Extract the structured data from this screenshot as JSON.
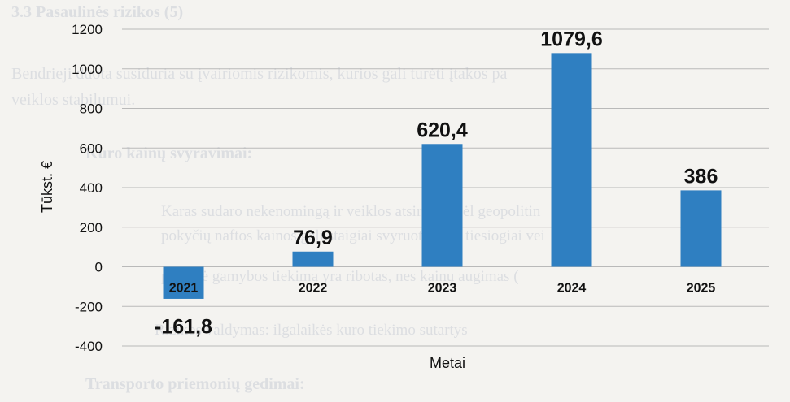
{
  "background_text": {
    "heading": "3.3 Pasaulinės rizikos (5)",
    "line1": "Bendrieji duota susiduria su įvairiomis rizikomis, kurios gali turėti įtakos pa",
    "line2": "veiklos stabilumui.",
    "line3": "Kuro kainų svyravimai:",
    "line4": "Karas sudaro nekenomingą ir veiklos atsiradų. Dėl geopolitin",
    "line5": "pokyčių naftos kainos gali staigiai svyruoti, o tai tiesiogiai vei",
    "line6": "pastovė gamybos tiekimą yra ribotas, nes kainų augimas (",
    "line7": "Rizikos valdymas: ilgalaikės kuro tiekimo sutartys",
    "line8": "Transporto priemonių gedimai:"
  },
  "chart_data": {
    "type": "bar",
    "categories": [
      "2021",
      "2022",
      "2023",
      "2024",
      "2025"
    ],
    "values": [
      -161.8,
      76.9,
      620.4,
      1079.6,
      386
    ],
    "value_labels": [
      "-161,8",
      "76,9",
      "620,4",
      "1079,6",
      "386"
    ],
    "xlabel": "Metai",
    "ylabel": "Tūkst. €",
    "ylim": [
      -400,
      1200
    ],
    "yticks": [
      -400,
      -200,
      0,
      200,
      400,
      600,
      800,
      1000,
      1200
    ],
    "grid": true,
    "bar_color": "#2f7fc1"
  }
}
